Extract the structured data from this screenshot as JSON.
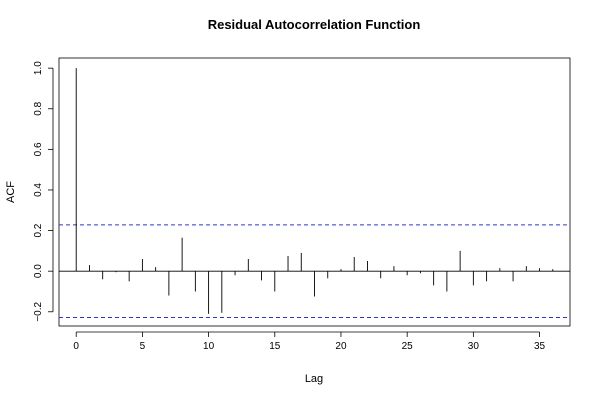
{
  "chart_data": {
    "type": "bar",
    "title": "Residual Autocorrelation Function",
    "xlabel": "Lag",
    "ylabel": "ACF",
    "xlim": [
      -1.3,
      37.3
    ],
    "ylim": [
      -0.27,
      1.05
    ],
    "xticks": [
      0,
      5,
      10,
      15,
      20,
      25,
      30,
      35
    ],
    "yticks": [
      -0.2,
      0.0,
      0.2,
      0.4,
      0.6,
      0.8,
      1.0
    ],
    "ytick_labels": [
      "−0.2",
      "0.0",
      "0.2",
      "0.4",
      "0.6",
      "0.8",
      "1.0"
    ],
    "lags": [
      0,
      1,
      2,
      3,
      4,
      5,
      6,
      7,
      8,
      9,
      10,
      11,
      12,
      13,
      14,
      15,
      16,
      17,
      18,
      19,
      20,
      21,
      22,
      23,
      24,
      25,
      26,
      27,
      28,
      29,
      30,
      31,
      32,
      33,
      34,
      35,
      36
    ],
    "values": [
      1.0,
      0.03,
      -0.04,
      -0.005,
      -0.05,
      0.06,
      0.02,
      -0.12,
      0.165,
      -0.1,
      -0.21,
      -0.205,
      -0.02,
      0.06,
      -0.045,
      -0.1,
      0.075,
      0.09,
      -0.125,
      -0.035,
      0.01,
      0.07,
      0.05,
      -0.035,
      0.025,
      -0.02,
      -0.01,
      -0.07,
      -0.1,
      0.1,
      -0.07,
      -0.05,
      0.015,
      -0.05,
      0.025,
      0.015,
      0.01
    ],
    "confidence_bound": 0.228,
    "grid": false,
    "colors": {
      "bars": "#000000",
      "confidence": "#3333cc",
      "axes": "#000000"
    }
  }
}
